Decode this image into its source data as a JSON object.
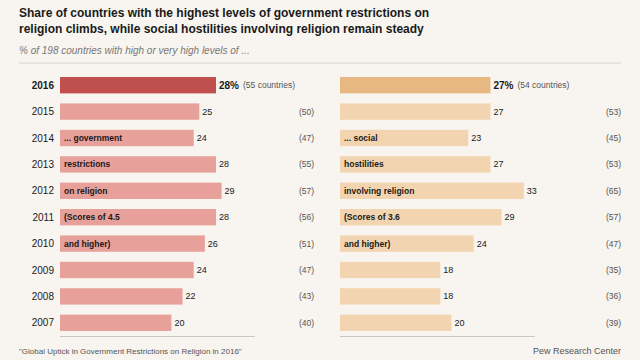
{
  "title": [
    "Share of countries with the highest levels of government restrictions on",
    "religion climbs, while social hostilities involving religion remain steady"
  ],
  "subtitle": "% of 198 countries with high or very high levels of ...",
  "source": "\"Global Uptick in Government Restrictions on Religion in 2016\"",
  "credit": "Pew Research Center",
  "chart_data": [
    {
      "type": "bar",
      "orientation": "horizontal",
      "categories": [
        2016,
        2015,
        2014,
        2013,
        2012,
        2011,
        2010,
        2009,
        2008,
        2007
      ],
      "values": [
        28,
        25,
        24,
        28,
        29,
        28,
        26,
        24,
        22,
        20
      ],
      "value_labels": [
        "28%",
        "25",
        "24",
        "28",
        "29",
        "28",
        "26",
        "24",
        "22",
        "20"
      ],
      "count_labels": [
        "(55 countries)",
        "(50)",
        "(47)",
        "(55)",
        "(57)",
        "(56)",
        "(51)",
        "(47)",
        "(43)",
        "(40)"
      ],
      "colors": [
        "#c0504d",
        "#e8a09a",
        "#e8a09a",
        "#e8a09a",
        "#e8a09a",
        "#e8a09a",
        "#e8a09a",
        "#e8a09a",
        "#e8a09a",
        "#e8a09a"
      ],
      "annotations": [
        "... government",
        "restrictions",
        "on religion",
        "(Scores of 4.5",
        "and higher)"
      ],
      "xlim": [
        0,
        35
      ],
      "data_labels": true,
      "tick_labels": "y",
      "grid": false
    },
    {
      "type": "bar",
      "orientation": "horizontal",
      "categories": [
        null,
        null,
        null,
        null,
        null,
        null,
        null,
        null,
        null,
        null
      ],
      "values": [
        27,
        27,
        23,
        27,
        33,
        29,
        24,
        18,
        18,
        20
      ],
      "value_labels": [
        "27%",
        "27",
        "23",
        "27",
        "33",
        "29",
        "24",
        "18",
        "18",
        "20"
      ],
      "count_labels": [
        "(54 countries)",
        "(53)",
        "(45)",
        "(53)",
        "(65)",
        "(57)",
        "(47)",
        "(35)",
        "(36)",
        "(39)"
      ],
      "colors": [
        "#e8b882",
        "#f2d5b0",
        "#f2d5b0",
        "#f2d5b0",
        "#f2d5b0",
        "#f2d5b0",
        "#f2d5b0",
        "#f2d5b0",
        "#f2d5b0",
        "#f2d5b0"
      ],
      "annotations": [
        "... social",
        "hostilities",
        "involving religion",
        "(Scores of 3.6",
        "and higher)"
      ],
      "xlim": [
        0,
        35
      ],
      "data_labels": true,
      "tick_labels": false,
      "grid": false
    }
  ]
}
